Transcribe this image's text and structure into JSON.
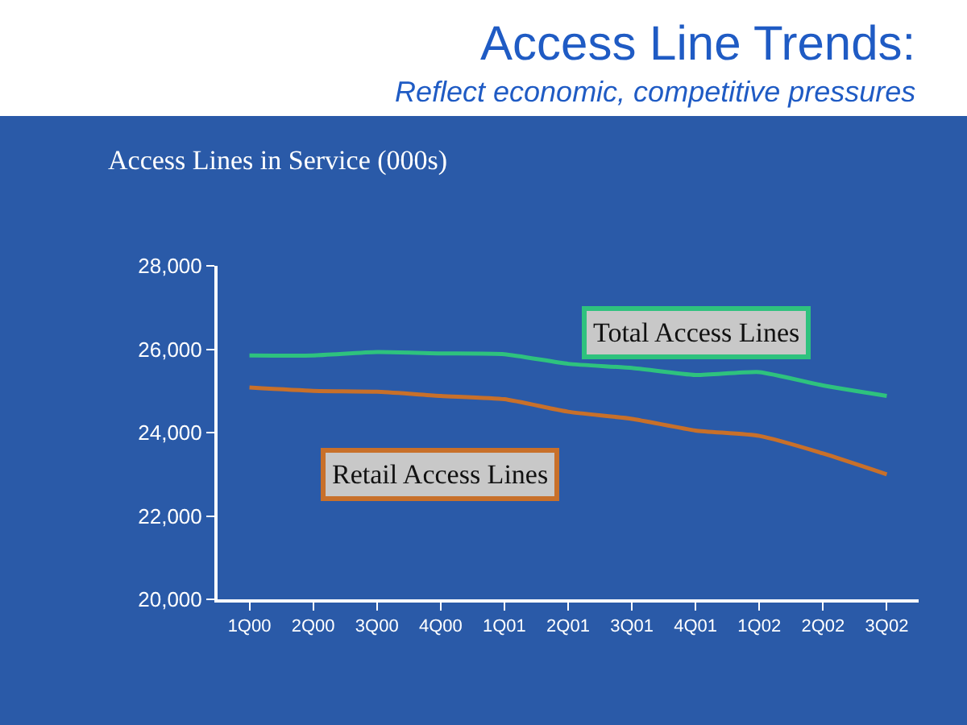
{
  "chart_data": {
    "type": "line",
    "title": "Access Line Trends:",
    "subtitle": "Reflect economic, competitive pressures",
    "annotations": [
      "Access Lines in Service (000s)"
    ],
    "categories": [
      "1Q00",
      "2Q00",
      "3Q00",
      "4Q00",
      "1Q01",
      "2Q01",
      "3Q01",
      "4Q01",
      "1Q02",
      "2Q02",
      "3Q02"
    ],
    "series": [
      {
        "name": "Total Access Lines",
        "color": "#2ec27e",
        "values": [
          25850,
          25850,
          25930,
          25900,
          25880,
          25650,
          25550,
          25380,
          25450,
          25130,
          24880
        ]
      },
      {
        "name": "Retail Access Lines",
        "color": "#c8702a",
        "values": [
          25080,
          25000,
          24980,
          24880,
          24800,
          24500,
          24330,
          24050,
          23920,
          23500,
          23000
        ]
      }
    ],
    "ylim": [
      20000,
      28000
    ],
    "yticks": [
      {
        "value": 20000,
        "label": "20,000"
      },
      {
        "value": 22000,
        "label": "22,000"
      },
      {
        "value": 24000,
        "label": "24,000"
      },
      {
        "value": 26000,
        "label": "26,000"
      },
      {
        "value": 28000,
        "label": "28,000"
      }
    ],
    "grid": false,
    "legend": false,
    "marker": "none",
    "line_style": "solid"
  }
}
